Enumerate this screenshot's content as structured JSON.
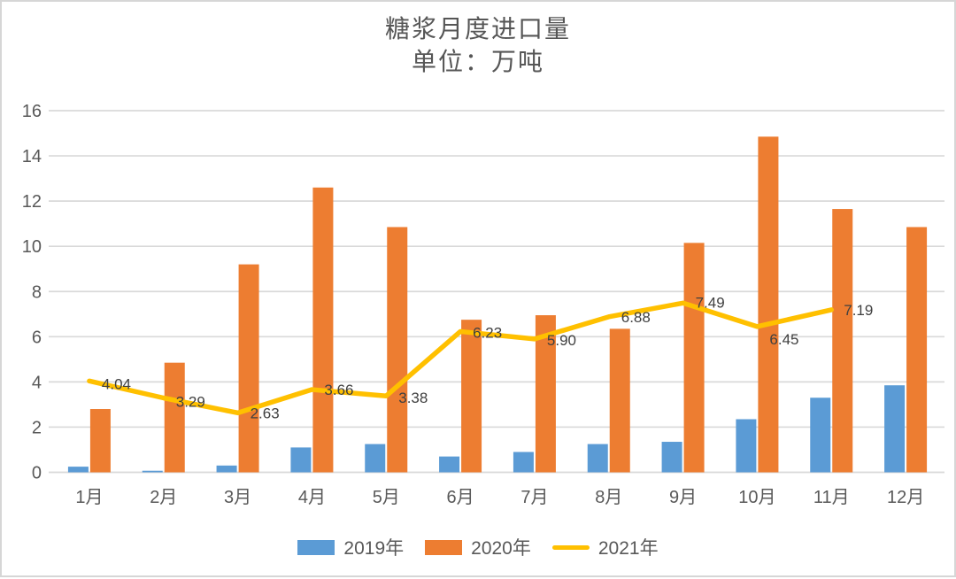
{
  "chart_data": {
    "type": "bar",
    "combo": "bars+line",
    "title": "糖浆月度进口量",
    "subtitle": "单位：万吨",
    "categories": [
      "1月",
      "2月",
      "3月",
      "4月",
      "5月",
      "6月",
      "7月",
      "8月",
      "9月",
      "10月",
      "11月",
      "12月"
    ],
    "series": [
      {
        "name": "2019年",
        "type": "bar",
        "color": "#5B9BD5",
        "values": [
          0.25,
          0.07,
          0.3,
          1.1,
          1.25,
          0.7,
          0.9,
          1.25,
          1.35,
          2.35,
          3.3,
          3.85
        ]
      },
      {
        "name": "2020年",
        "type": "bar",
        "color": "#ED7D31",
        "values": [
          2.8,
          4.85,
          9.2,
          12.6,
          10.85,
          6.75,
          6.95,
          6.35,
          10.15,
          14.85,
          11.65,
          10.85
        ]
      },
      {
        "name": "2021年",
        "type": "line",
        "color": "#FFC000",
        "values": [
          4.04,
          3.29,
          2.63,
          3.66,
          3.38,
          6.23,
          5.9,
          6.88,
          7.49,
          6.45,
          7.19
        ],
        "data_labels": [
          "4.04",
          "3.29",
          "2.63",
          "3.66",
          "3.38",
          "6.23",
          "5.90",
          "6.88",
          "7.49",
          "6.45",
          "7.19"
        ]
      }
    ],
    "y_axis": {
      "min": 0,
      "max": 16,
      "step": 2,
      "ticks": [
        "0",
        "2",
        "4",
        "6",
        "8",
        "10",
        "12",
        "14",
        "16"
      ]
    },
    "grid": true,
    "legend_position": "bottom"
  },
  "palette": {
    "grid_line": "#D9D9D9",
    "axis_text": "#595959",
    "data_label_text": "#404040",
    "frame_border": "#D6D6D6",
    "background": "#FFFFFF"
  }
}
